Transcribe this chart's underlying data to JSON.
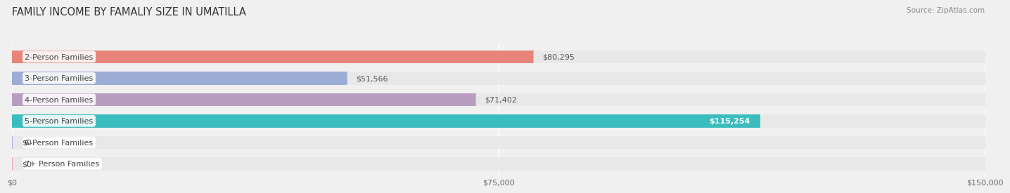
{
  "title": "FAMILY INCOME BY FAMALIY SIZE IN UMATILLA",
  "source": "Source: ZipAtlas.com",
  "categories": [
    "2-Person Families",
    "3-Person Families",
    "4-Person Families",
    "5-Person Families",
    "6-Person Families",
    "7+ Person Families"
  ],
  "values": [
    80295,
    51566,
    71402,
    115254,
    0,
    0
  ],
  "bar_colors": [
    "#E8847A",
    "#9BADD4",
    "#B89DC0",
    "#3BBCBE",
    "#AAAADD",
    "#F0A0B0"
  ],
  "value_inside": [
    false,
    false,
    false,
    true,
    false,
    false
  ],
  "xlim": [
    0,
    150000
  ],
  "xtick_labels": [
    "$0",
    "$75,000",
    "$150,000"
  ],
  "xtick_vals": [
    0,
    75000,
    150000
  ],
  "value_labels": [
    "$80,295",
    "$51,566",
    "$71,402",
    "$115,254",
    "$0",
    "$0"
  ],
  "background_color": "#f0f0f0",
  "bar_bg_color": "#e8e8e8",
  "title_fontsize": 10.5,
  "label_fontsize": 8,
  "value_fontsize": 8,
  "tick_fontsize": 8,
  "source_fontsize": 7.5
}
